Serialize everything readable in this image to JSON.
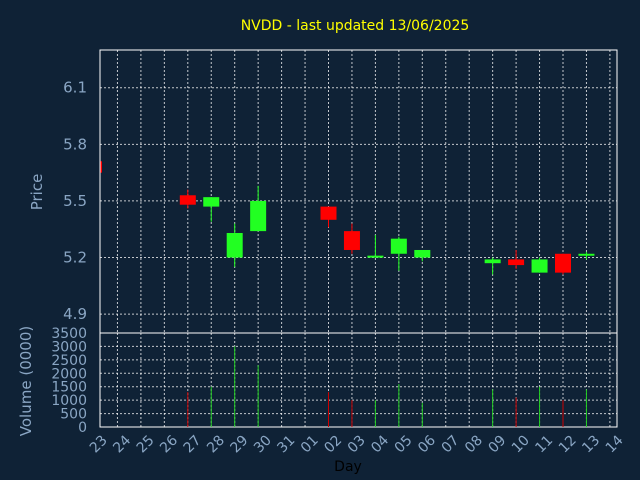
{
  "colors": {
    "background": "#0f2236",
    "plot_background": "#0f2236",
    "grid": "#ffffff",
    "title": "#ffff00",
    "axis_text": "#8aa6c4",
    "up": "#22ff22",
    "down": "#ff0000",
    "up_volume": "#22cc22",
    "down_volume": "#cc0000"
  },
  "chart_data": {
    "type": "candlestick",
    "title": "NVDD - last updated 13/06/2025",
    "price_axis": {
      "label": "Price",
      "ticks": [
        "4.9",
        "5.2",
        "5.5",
        "5.8",
        "6.1"
      ],
      "range": [
        4.8,
        6.3
      ]
    },
    "volume_axis": {
      "label": "Volume (0000)",
      "ticks": [
        "0",
        "500",
        "1000",
        "1500",
        "2000",
        "2500",
        "3000",
        "3500"
      ],
      "range": [
        0,
        3500
      ]
    },
    "x_axis": {
      "label": "Day",
      "ticks": [
        "23",
        "24",
        "25",
        "26",
        "27",
        "28",
        "29",
        "30",
        "31",
        "01",
        "02",
        "03",
        "04",
        "05",
        "06",
        "07",
        "08",
        "09",
        "10",
        "11",
        "12",
        "13",
        "14"
      ]
    },
    "candles": [
      {
        "day": "23",
        "open": 5.71,
        "high": 5.71,
        "low": 5.65,
        "close": 5.65,
        "volume": null
      },
      {
        "day": "27",
        "open": 5.53,
        "high": 5.56,
        "low": 5.46,
        "close": 5.48,
        "volume": 1300
      },
      {
        "day": "28",
        "open": 5.47,
        "high": 5.52,
        "low": 5.39,
        "close": 5.52,
        "volume": 1500
      },
      {
        "day": "29",
        "open": 5.2,
        "high": 5.38,
        "low": 5.15,
        "close": 5.33,
        "volume": 3000
      },
      {
        "day": "30",
        "open": 5.34,
        "high": 5.58,
        "low": 5.34,
        "close": 5.5,
        "volume": 2300
      },
      {
        "day": "02",
        "open": 5.47,
        "high": 5.47,
        "low": 5.36,
        "close": 5.4,
        "volume": 1300
      },
      {
        "day": "03",
        "open": 5.34,
        "high": 5.38,
        "low": 5.22,
        "close": 5.24,
        "volume": 1000
      },
      {
        "day": "04",
        "open": 5.2,
        "high": 5.32,
        "low": 5.2,
        "close": 5.21,
        "volume": 1000
      },
      {
        "day": "05",
        "open": 5.22,
        "high": 5.31,
        "low": 5.13,
        "close": 5.3,
        "volume": 1600
      },
      {
        "day": "06",
        "open": 5.2,
        "high": 5.24,
        "low": 5.18,
        "close": 5.24,
        "volume": 900
      },
      {
        "day": "09",
        "open": 5.17,
        "high": 5.2,
        "low": 5.11,
        "close": 5.19,
        "volume": 1400
      },
      {
        "day": "10",
        "open": 5.19,
        "high": 5.24,
        "low": 5.14,
        "close": 5.16,
        "volume": 1100
      },
      {
        "day": "11",
        "open": 5.12,
        "high": 5.2,
        "low": 5.12,
        "close": 5.19,
        "volume": 1500
      },
      {
        "day": "12",
        "open": 5.22,
        "high": 5.22,
        "low": 5.11,
        "close": 5.12,
        "volume": 1000
      },
      {
        "day": "13",
        "open": 5.21,
        "high": 5.23,
        "low": 5.19,
        "close": 5.22,
        "volume": 1400
      }
    ]
  }
}
